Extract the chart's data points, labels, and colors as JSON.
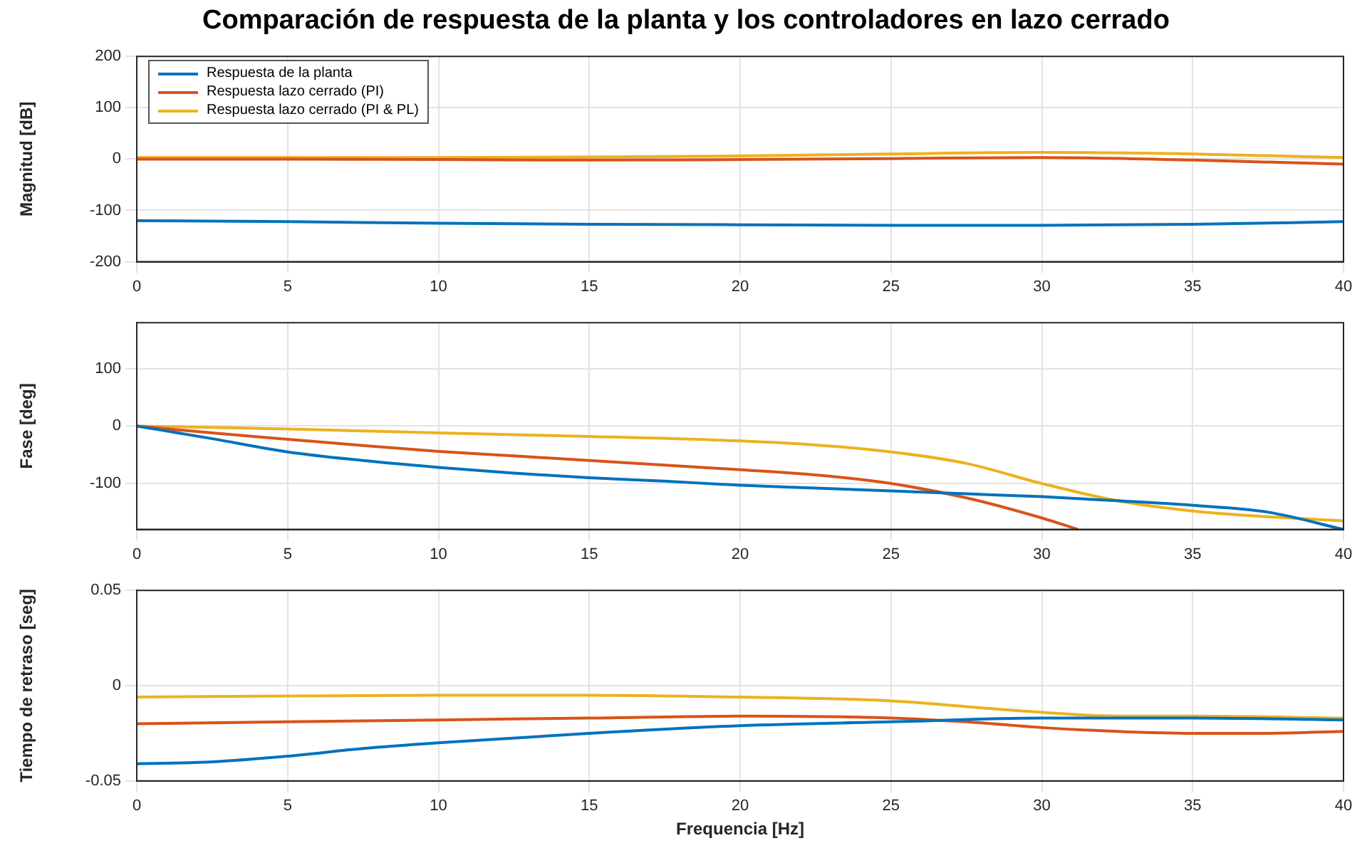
{
  "chart_data": [
    {
      "type": "line",
      "title": "Comparación de respuesta de la planta y los controladores en lazo cerrado",
      "ylabel": "Magnitud [dB]",
      "xlim": [
        0,
        40
      ],
      "xticks": [
        0,
        5,
        10,
        15,
        20,
        25,
        30,
        35,
        40
      ],
      "ylim": [
        -200,
        200
      ],
      "yticks": [
        -200,
        -100,
        0,
        100,
        200
      ],
      "grid": true,
      "legend": "top left",
      "marker": "none",
      "series": [
        {
          "name": "Respuesta de la planta",
          "color": "#0072bd",
          "x": [
            0,
            5,
            10,
            15,
            20,
            25,
            30,
            35,
            40
          ],
          "values": [
            -120,
            -122,
            -125,
            -127,
            -128,
            -129,
            -129,
            -127,
            -122
          ]
        },
        {
          "name": "Respuesta lazo cerrado (PI)",
          "color": "#d95319",
          "x": [
            0,
            5,
            10,
            15,
            20,
            25,
            30,
            35,
            40
          ],
          "values": [
            0,
            0,
            -1,
            -2,
            -1,
            1,
            3,
            -2,
            -10
          ]
        },
        {
          "name": "Respuesta lazo cerrado (PI & PL)",
          "color": "#edb120",
          "x": [
            0,
            5,
            10,
            15,
            20,
            25,
            30,
            35,
            40
          ],
          "values": [
            3,
            3,
            3,
            4,
            6,
            10,
            13,
            10,
            3
          ]
        }
      ]
    },
    {
      "type": "line",
      "ylabel": "Fase [deg]",
      "xlim": [
        0,
        40
      ],
      "xticks": [
        0,
        5,
        10,
        15,
        20,
        25,
        30,
        35,
        40
      ],
      "ylim": [
        -180,
        180
      ],
      "yticks": [
        -100,
        0,
        100
      ],
      "grid": true,
      "marker": "none",
      "series": [
        {
          "color": "#0072bd",
          "x": [
            0,
            2.5,
            5,
            7.5,
            10,
            12.5,
            15,
            17.5,
            20,
            22.5,
            25,
            27.5,
            30,
            32.5,
            35,
            37.5,
            40
          ],
          "values": [
            0,
            -22,
            -45,
            -60,
            -72,
            -82,
            -90,
            -96,
            -103,
            -108,
            -113,
            -118,
            -123,
            -130,
            -138,
            -150,
            -180
          ]
        },
        {
          "color": "#d95319",
          "x": [
            0,
            2.5,
            5,
            7.5,
            10,
            12.5,
            15,
            17.5,
            20,
            22.5,
            25,
            27.5,
            30,
            31.2
          ],
          "values": [
            0,
            -12,
            -23,
            -34,
            -44,
            -52,
            -60,
            -68,
            -76,
            -85,
            -100,
            -125,
            -160,
            -180
          ]
        },
        {
          "color": "#edb120",
          "x": [
            0,
            5,
            10,
            15,
            20,
            22.5,
            25,
            27.5,
            30,
            32.5,
            35,
            37.5,
            40
          ],
          "values": [
            0,
            -5,
            -12,
            -18,
            -26,
            -33,
            -45,
            -65,
            -100,
            -130,
            -148,
            -158,
            -165
          ]
        }
      ]
    },
    {
      "type": "line",
      "ylabel": "Tiempo de retraso [seg]",
      "xlabel": "Frequencia [Hz]",
      "xlim": [
        0,
        40
      ],
      "xticks": [
        0,
        5,
        10,
        15,
        20,
        25,
        30,
        35,
        40
      ],
      "ylim": [
        -0.05,
        0.05
      ],
      "yticks": [
        -0.05,
        0,
        0.05
      ],
      "grid": true,
      "marker": "none",
      "series": [
        {
          "color": "#0072bd",
          "x": [
            0,
            2.5,
            5,
            7.5,
            10,
            15,
            20,
            25,
            30,
            35,
            40
          ],
          "values": [
            -0.041,
            -0.04,
            -0.037,
            -0.033,
            -0.03,
            -0.025,
            -0.021,
            -0.019,
            -0.017,
            -0.017,
            -0.018
          ]
        },
        {
          "color": "#d95319",
          "x": [
            0,
            10,
            15,
            20,
            25,
            27.5,
            30,
            32.5,
            35,
            37.5,
            40
          ],
          "values": [
            -0.02,
            -0.018,
            -0.017,
            -0.016,
            -0.017,
            -0.019,
            -0.022,
            -0.024,
            -0.025,
            -0.025,
            -0.024
          ]
        },
        {
          "color": "#edb120",
          "x": [
            0,
            10,
            15,
            20,
            25,
            27.5,
            30,
            32.5,
            35,
            40
          ],
          "values": [
            -0.006,
            -0.005,
            -0.005,
            -0.006,
            -0.008,
            -0.011,
            -0.014,
            -0.016,
            -0.016,
            -0.017
          ]
        }
      ]
    }
  ]
}
